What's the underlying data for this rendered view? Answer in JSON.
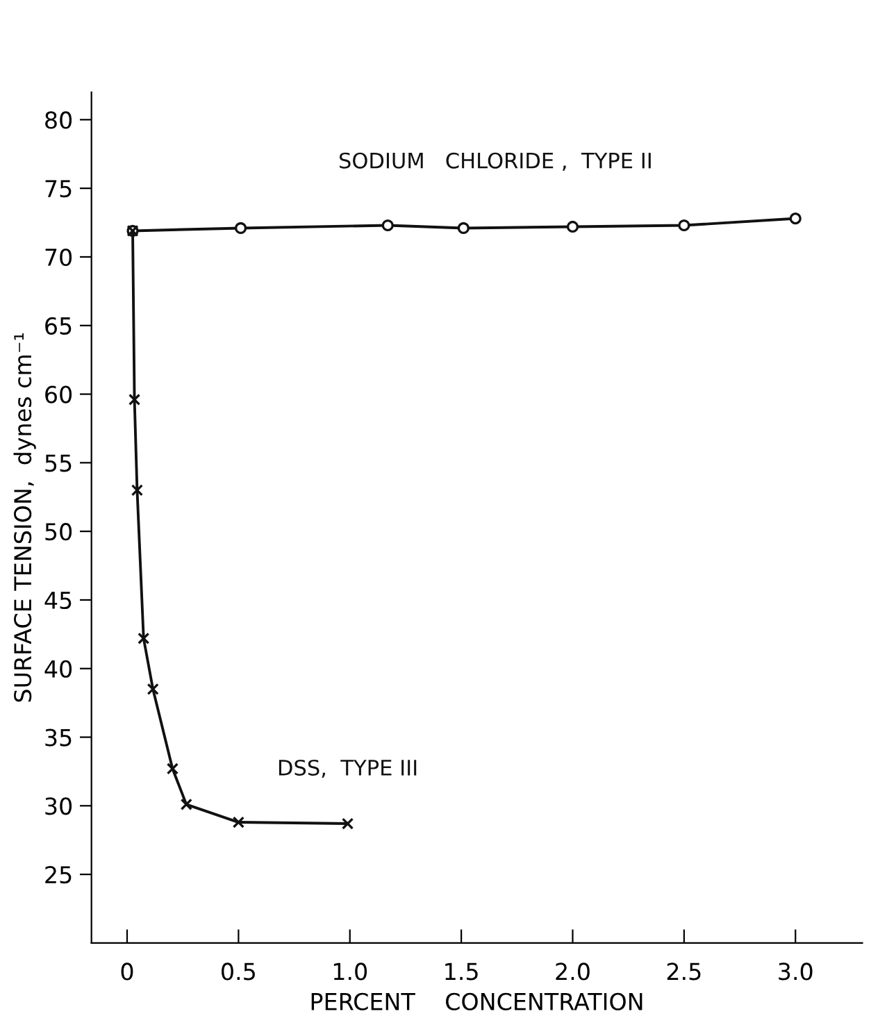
{
  "chart_data": {
    "type": "line",
    "xlabel": "PERCENT    CONCENTRATION",
    "ylabel": "SURFACE TENSION,  dynes cm⁻¹",
    "xlim": [
      -0.16,
      3.3
    ],
    "ylim": [
      20,
      82
    ],
    "xticks": [
      0,
      {
        "value": 0.5,
        "label": "0.5"
      },
      {
        "value": 1.0,
        "label": "1.0"
      },
      1.5,
      {
        "value": 2.0,
        "label": "2.0"
      },
      2.5,
      {
        "value": 3.0,
        "label": "3.0"
      }
    ],
    "yticks": [
      25,
      30,
      35,
      40,
      45,
      50,
      55,
      60,
      65,
      70,
      75,
      80
    ],
    "grid": false,
    "legend": false,
    "line_style": "solid",
    "series": [
      {
        "name": "SODIUM   CHLORIDE ,  TYPE II",
        "color": "#111111",
        "marker": "circle",
        "x": [
          0.025,
          0.51,
          1.17,
          1.51,
          2.0,
          2.5,
          3.0
        ],
        "values": [
          71.9,
          72.1,
          72.3,
          72.1,
          72.2,
          72.3,
          72.8
        ]
      },
      {
        "name": "DSS,  TYPE III",
        "color": "#111111",
        "marker": "cross",
        "x": [
          0.025,
          0.033,
          0.045,
          0.074,
          0.116,
          0.204,
          0.266,
          0.5,
          0.99
        ],
        "values": [
          71.9,
          59.6,
          53.0,
          42.2,
          38.5,
          32.7,
          30.1,
          28.8,
          28.7
        ]
      }
    ]
  }
}
